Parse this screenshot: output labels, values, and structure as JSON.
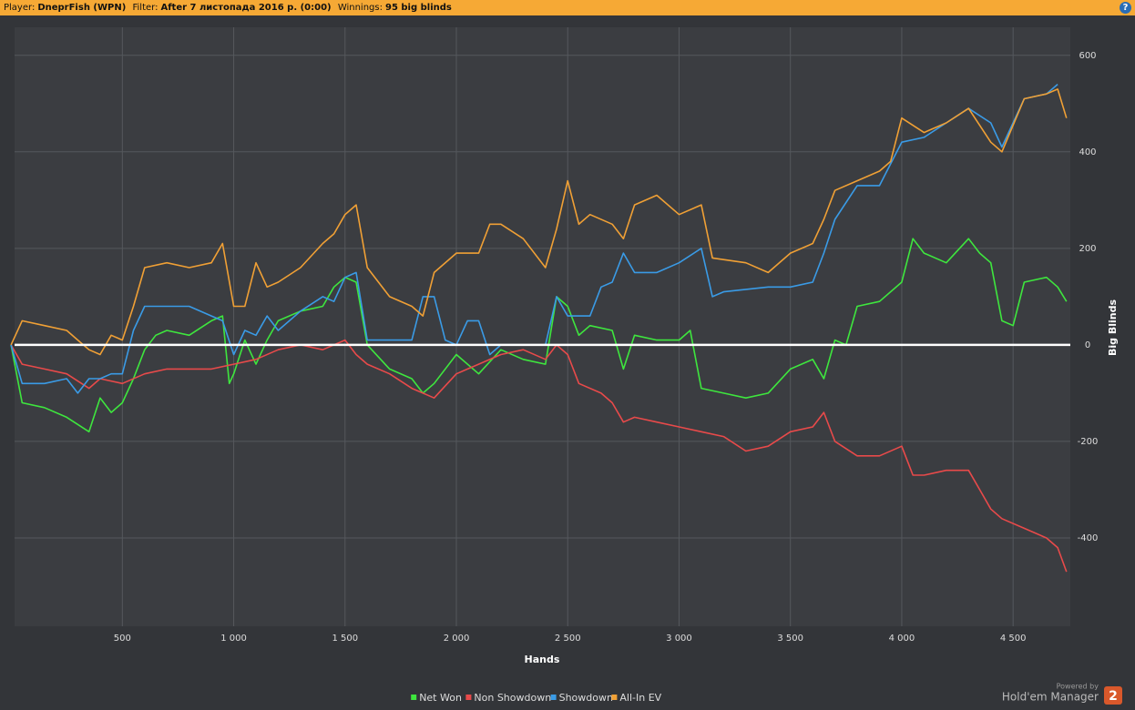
{
  "header": {
    "player_label": "Player:",
    "player": "DneprFish (WPN)",
    "filter_label": "Filter:",
    "filter": "After 7 листопада 2016 р. (0:00)",
    "winnings_label": "Winnings:",
    "winnings": "95 big blinds",
    "help": "?"
  },
  "footer": {
    "powered_by": "Powered by",
    "brand": "Hold'em Manager",
    "logo": "2"
  },
  "chart_data": {
    "type": "line",
    "x_label": "Hands",
    "y_label": "Big Blinds",
    "xlim": [
      16,
      4757
    ],
    "ylim": [
      -583,
      658
    ],
    "xticks": [
      500,
      {
        "value": 1000,
        "label": "1 000"
      },
      {
        "value": 1500,
        "label": "1 500"
      },
      {
        "value": 2000,
        "label": "2 000"
      },
      {
        "value": 2500,
        "label": "2 500"
      },
      {
        "value": 3000,
        "label": "3 000"
      },
      {
        "value": 3500,
        "label": "3 500"
      },
      {
        "value": 4000,
        "label": "4 000"
      },
      {
        "value": 4500,
        "label": "4 500"
      }
    ],
    "yticks": [
      -400,
      -200,
      0,
      200,
      400,
      600
    ],
    "grid": true,
    "legend": "bottom",
    "series": [
      {
        "name": "Net Won",
        "color": "#3ee63e",
        "x": [
          0,
          50,
          150,
          250,
          350,
          400,
          450,
          500,
          550,
          600,
          650,
          700,
          800,
          900,
          950,
          980,
          1000,
          1050,
          1100,
          1150,
          1200,
          1300,
          1400,
          1450,
          1500,
          1550,
          1600,
          1700,
          1800,
          1850,
          1900,
          2000,
          2100,
          2200,
          2300,
          2400,
          2450,
          2500,
          2550,
          2600,
          2700,
          2750,
          2800,
          2900,
          3000,
          3050,
          3100,
          3200,
          3300,
          3400,
          3500,
          3600,
          3650,
          3700,
          3750,
          3800,
          3900,
          4000,
          4050,
          4100,
          4200,
          4300,
          4350,
          4400,
          4450,
          4500,
          4550,
          4650,
          4700,
          4740
        ],
        "values": [
          0,
          -120,
          -130,
          -150,
          -180,
          -110,
          -140,
          -120,
          -70,
          -10,
          20,
          30,
          20,
          50,
          60,
          -80,
          -60,
          10,
          -40,
          10,
          50,
          70,
          80,
          120,
          140,
          130,
          0,
          -50,
          -70,
          -100,
          -80,
          -20,
          -60,
          -10,
          -30,
          -40,
          100,
          80,
          20,
          40,
          30,
          -50,
          20,
          10,
          10,
          30,
          -90,
          -100,
          -110,
          -100,
          -50,
          -30,
          -70,
          10,
          0,
          80,
          90,
          130,
          220,
          190,
          170,
          220,
          190,
          170,
          50,
          40,
          130,
          140,
          120,
          90
        ]
      },
      {
        "name": "Non Showdown",
        "color": "#e84a4a",
        "x": [
          0,
          50,
          150,
          250,
          350,
          400,
          500,
          600,
          700,
          800,
          900,
          1000,
          1100,
          1200,
          1300,
          1400,
          1500,
          1550,
          1600,
          1700,
          1800,
          1900,
          2000,
          2100,
          2200,
          2300,
          2400,
          2450,
          2500,
          2550,
          2650,
          2700,
          2750,
          2800,
          2900,
          3000,
          3100,
          3200,
          3300,
          3400,
          3500,
          3600,
          3650,
          3700,
          3800,
          3900,
          4000,
          4050,
          4100,
          4200,
          4300,
          4350,
          4400,
          4450,
          4550,
          4650,
          4700,
          4740
        ],
        "values": [
          0,
          -40,
          -50,
          -60,
          -90,
          -70,
          -80,
          -60,
          -50,
          -50,
          -50,
          -40,
          -30,
          -10,
          0,
          -10,
          10,
          -20,
          -40,
          -60,
          -90,
          -110,
          -60,
          -40,
          -20,
          -10,
          -30,
          0,
          -20,
          -80,
          -100,
          -120,
          -160,
          -150,
          -160,
          -170,
          -180,
          -190,
          -220,
          -210,
          -180,
          -170,
          -140,
          -200,
          -230,
          -230,
          -210,
          -270,
          -270,
          -260,
          -260,
          -300,
          -340,
          -360,
          -380,
          -400,
          -420,
          -470
        ]
      },
      {
        "name": "Showdown",
        "color": "#3a9be6",
        "x": [
          0,
          50,
          150,
          250,
          300,
          350,
          400,
          450,
          500,
          550,
          600,
          700,
          800,
          900,
          950,
          1000,
          1050,
          1100,
          1150,
          1200,
          1300,
          1400,
          1450,
          1500,
          1550,
          1600,
          1700,
          1800,
          1850,
          1900,
          1950,
          2000,
          2050,
          2100,
          2150,
          2200,
          2300,
          2400,
          2450,
          2500,
          2600,
          2650,
          2700,
          2750,
          2800,
          2900,
          3000,
          3100,
          3150,
          3200,
          3400,
          3500,
          3600,
          3650,
          3700,
          3800,
          3900,
          4000,
          4100,
          4200,
          4300,
          4400,
          4450,
          4550,
          4650,
          4700
        ],
        "values": [
          0,
          -80,
          -80,
          -70,
          -100,
          -70,
          -70,
          -60,
          -60,
          30,
          80,
          80,
          80,
          60,
          50,
          -20,
          30,
          20,
          60,
          30,
          70,
          100,
          90,
          140,
          150,
          10,
          10,
          10,
          100,
          100,
          10,
          0,
          50,
          50,
          -20,
          0,
          0,
          0,
          100,
          60,
          60,
          120,
          130,
          190,
          150,
          150,
          170,
          200,
          100,
          110,
          120,
          120,
          130,
          190,
          260,
          330,
          330,
          420,
          430,
          460,
          490,
          460,
          410,
          510,
          520,
          540
        ]
      },
      {
        "name": "All-In EV",
        "color": "#f0a035",
        "x": [
          0,
          50,
          150,
          250,
          300,
          350,
          400,
          450,
          500,
          550,
          600,
          700,
          800,
          900,
          950,
          1000,
          1050,
          1100,
          1150,
          1200,
          1300,
          1400,
          1450,
          1500,
          1550,
          1600,
          1700,
          1800,
          1850,
          1900,
          2000,
          2100,
          2150,
          2200,
          2300,
          2400,
          2450,
          2500,
          2550,
          2600,
          2700,
          2750,
          2800,
          2900,
          3000,
          3100,
          3150,
          3300,
          3400,
          3500,
          3600,
          3650,
          3700,
          3800,
          3900,
          3950,
          4000,
          4100,
          4200,
          4300,
          4400,
          4450,
          4550,
          4650,
          4700,
          4740
        ],
        "values": [
          0,
          50,
          40,
          30,
          10,
          -10,
          -20,
          20,
          10,
          80,
          160,
          170,
          160,
          170,
          210,
          80,
          80,
          170,
          120,
          130,
          160,
          210,
          230,
          270,
          290,
          160,
          100,
          80,
          60,
          150,
          190,
          190,
          250,
          250,
          220,
          160,
          240,
          340,
          250,
          270,
          250,
          220,
          290,
          310,
          270,
          290,
          180,
          170,
          150,
          190,
          210,
          260,
          320,
          340,
          360,
          380,
          470,
          440,
          460,
          490,
          420,
          400,
          510,
          520,
          530,
          470
        ]
      }
    ]
  }
}
